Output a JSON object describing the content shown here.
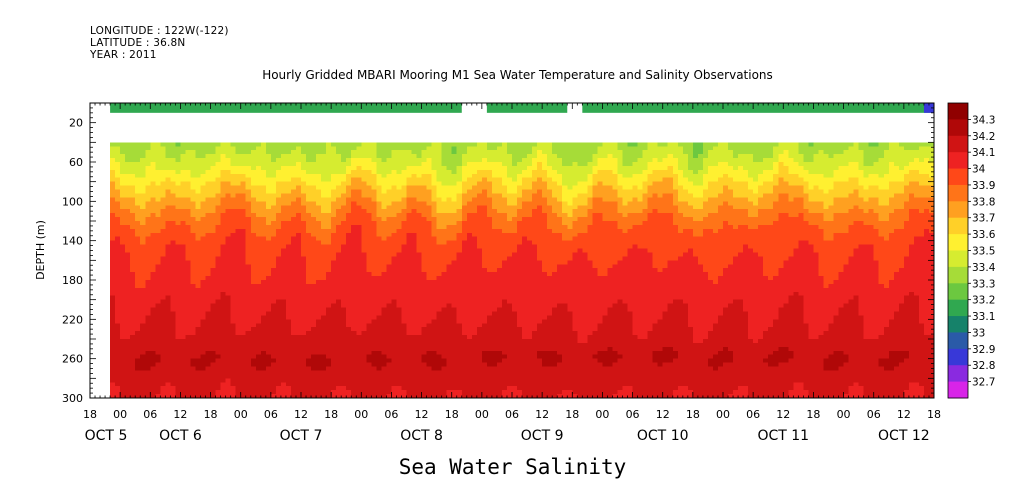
{
  "header": {
    "longitude": "LONGITUDE : 122W(-122)",
    "latitude": "LATITUDE : 36.8N",
    "year": "YEAR : 2011"
  },
  "chart_data": {
    "type": "heatmap",
    "title": "Hourly Gridded MBARI Mooring M1 Sea Water Temperature and Salinity Observations",
    "variable_label": "Sea Water Salinity",
    "ylabel": "DEPTH (m)",
    "y_inverted": true,
    "ylim": [
      300,
      0
    ],
    "y_ticks": [
      20,
      60,
      100,
      140,
      180,
      220,
      260,
      300
    ],
    "x_hour_ticks": [
      "18",
      "00",
      "06",
      "12",
      "18",
      "00",
      "06",
      "12",
      "18",
      "00",
      "06",
      "12",
      "18",
      "00",
      "06",
      "12",
      "18",
      "00",
      "06",
      "12",
      "18",
      "00",
      "06",
      "12",
      "18",
      "00",
      "06",
      "12",
      "18"
    ],
    "x_day_labels": [
      "OCT 5",
      "OCT 6",
      "OCT 7",
      "OCT 8",
      "OCT 9",
      "OCT 10",
      "OCT 11",
      "OCT 12"
    ],
    "x_range_hours_from_oct5_18": [
      0,
      168
    ],
    "data_range_hours_from_oct5_18": [
      4,
      168
    ],
    "surface_band": {
      "depth": [
        0,
        10
      ],
      "value": 33.2,
      "gaps_hours": [
        [
          74,
          79
        ],
        [
          95,
          98
        ]
      ],
      "end_value": 32.9
    },
    "data_top_depth": 40,
    "profile": {
      "depths": [
        40,
        60,
        80,
        100,
        120,
        140,
        160,
        180,
        200,
        220,
        240,
        260,
        280,
        300
      ],
      "salinity": [
        33.35,
        33.45,
        33.6,
        33.75,
        33.88,
        33.97,
        34.0,
        34.03,
        34.07,
        34.1,
        34.13,
        34.2,
        34.14,
        34.11
      ]
    },
    "colorbar": {
      "levels": [
        34.3,
        34.2,
        34.1,
        34,
        33.9,
        33.8,
        33.7,
        33.6,
        33.5,
        33.4,
        33.3,
        33.2,
        33.1,
        33,
        32.9,
        32.8,
        32.7
      ],
      "colors": [
        "#900000",
        "#b00808",
        "#d01414",
        "#ee2222",
        "#ff4818",
        "#ff7418",
        "#ffa020",
        "#ffd028",
        "#fff030",
        "#d6ec30",
        "#a6dc38",
        "#6cc840",
        "#30a850",
        "#16826a",
        "#2a5aa8",
        "#3838d8",
        "#8a2ae0",
        "#d824e8"
      ]
    }
  }
}
